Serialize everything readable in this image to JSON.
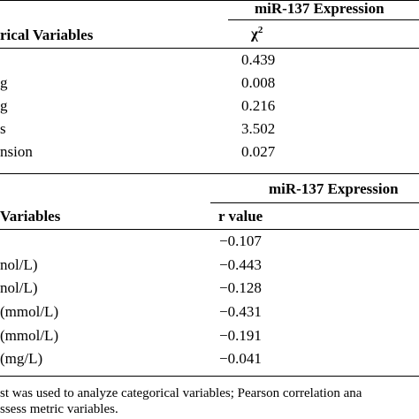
{
  "table1": {
    "group_header": "miR-137 Expression",
    "col_header_left": "rical Variables",
    "col_header_stat": "χ",
    "col_header_stat_sup": "2",
    "rows": [
      {
        "label": "",
        "value": "0.439"
      },
      {
        "label": "g",
        "value": "0.008"
      },
      {
        "label": "g",
        "value": "0.216"
      },
      {
        "label": "s",
        "value": "3.502"
      },
      {
        "label": "nsion",
        "value": "0.027"
      }
    ]
  },
  "table2": {
    "group_header": "miR-137 Expression",
    "col_header_left": "Variables",
    "col_header_stat": "r value",
    "rows": [
      {
        "label": "",
        "value": "−0.107"
      },
      {
        "label": "nol/L)",
        "value": "−0.443"
      },
      {
        "label": "nol/L)",
        "value": "−0.128"
      },
      {
        "label": "(mmol/L)",
        "value": "−0.431"
      },
      {
        "label": "(mmol/L)",
        "value": "−0.191"
      },
      {
        "label": "(mg/L)",
        "value": "−0.041"
      }
    ]
  },
  "footnote": {
    "line1": "st was used to analyze categorical variables; Pearson correlation ana",
    "line2": "ssess metric variables."
  }
}
